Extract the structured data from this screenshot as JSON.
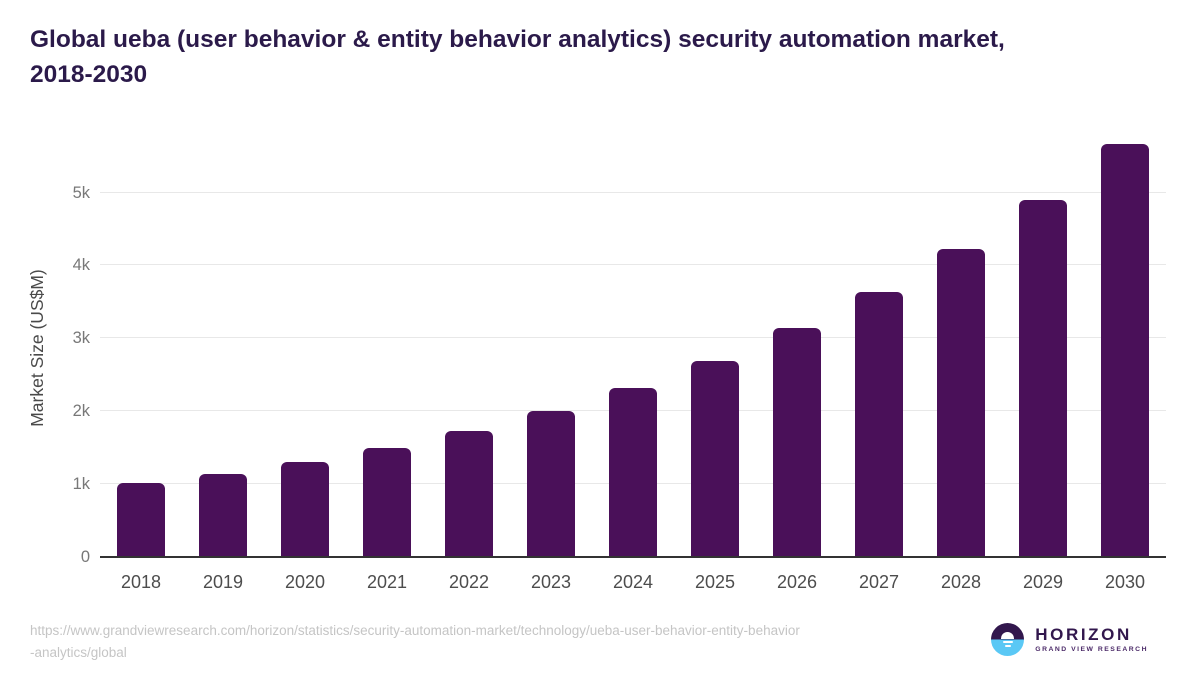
{
  "header": {
    "title_lines": [
      "Global ueba (user behavior & entity behavior analytics) security automation market,",
      "2018-2030"
    ]
  },
  "chart_data": {
    "type": "bar",
    "title": "Global ueba (user behavior & entity behavior analytics) security automation market, 2018-2030",
    "categories": [
      "2018",
      "2019",
      "2020",
      "2021",
      "2022",
      "2023",
      "2024",
      "2025",
      "2026",
      "2027",
      "2028",
      "2029",
      "2030"
    ],
    "values": [
      1020,
      1140,
      1310,
      1500,
      1730,
      2000,
      2320,
      2690,
      3140,
      3640,
      4230,
      4900,
      5670
    ],
    "unit": "US$M",
    "ylabel": "Market Size (US$M)",
    "xlabel": "",
    "ylim": [
      0,
      5720
    ],
    "yticks": [
      {
        "value": 0,
        "label": "0"
      },
      {
        "value": 1000,
        "label": "1k"
      },
      {
        "value": 2000,
        "label": "2k"
      },
      {
        "value": 3000,
        "label": "3k"
      },
      {
        "value": 4000,
        "label": "4k"
      },
      {
        "value": 5000,
        "label": "5k"
      }
    ],
    "grid": true,
    "legend": false
  },
  "footer": {
    "source_lines": [
      "https://www.grandviewresearch.com/horizon/statistics/security-automation-market/technology/ueba-user-behavior-entity-behavior",
      "-analytics/global"
    ],
    "logo": {
      "wordmark": "HORIZON",
      "tagline": "GRAND VIEW RESEARCH"
    }
  },
  "colors": {
    "bar": "#4a1059",
    "title": "#2b1a4a",
    "axis_title": "#4a4a4a",
    "tick_label": "#787878",
    "x_label": "#4d4d4d",
    "gridline": "#e8e8e8",
    "axis_line": "#333333",
    "source_text": "#c5c5c5",
    "logo_purple": "#32174d",
    "logo_blue": "#5ac8f5",
    "background": "#ffffff"
  }
}
